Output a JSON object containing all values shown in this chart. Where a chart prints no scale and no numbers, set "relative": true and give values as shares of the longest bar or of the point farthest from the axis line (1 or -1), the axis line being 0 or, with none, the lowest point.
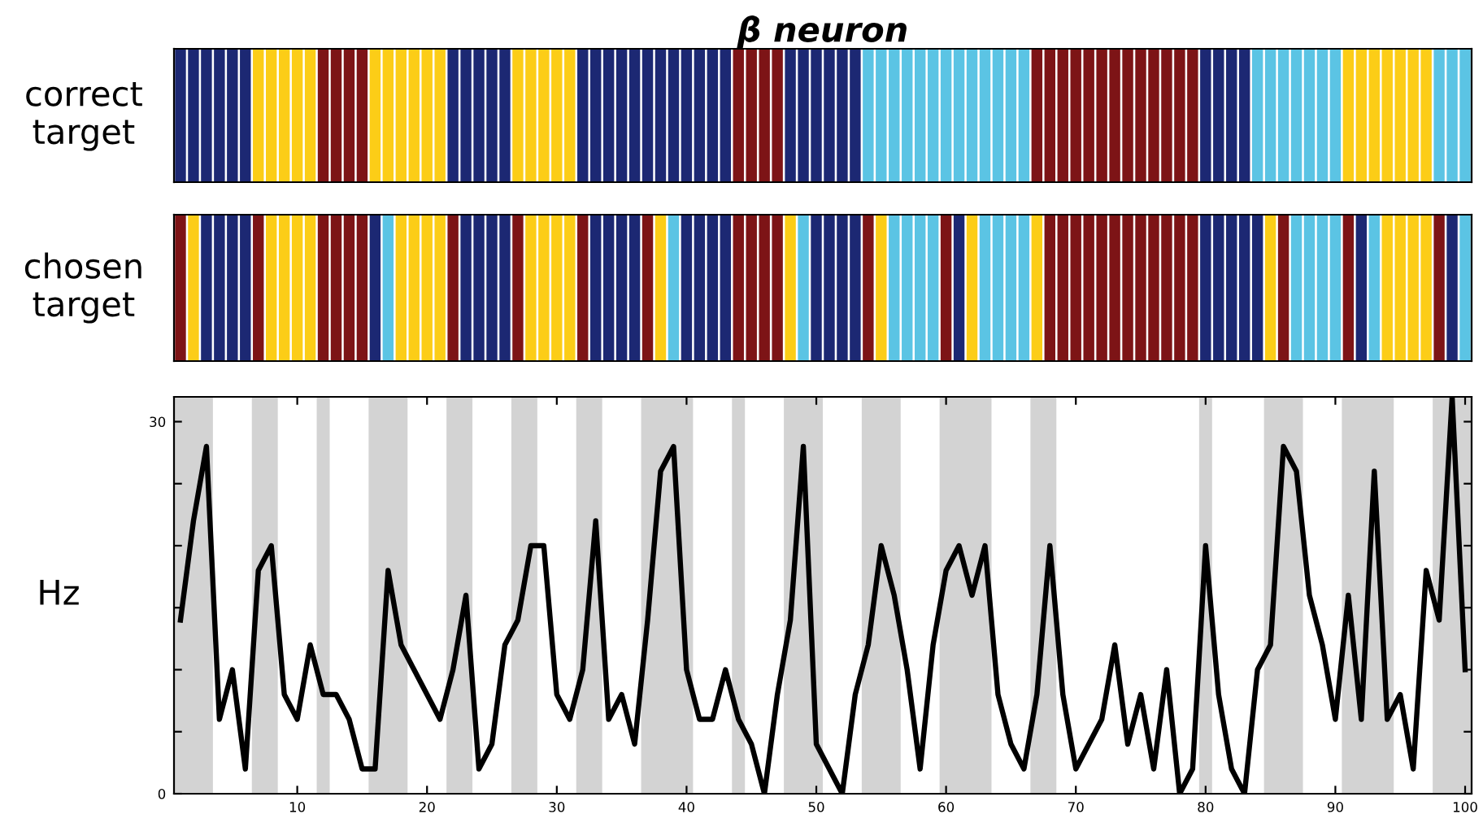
{
  "chart_data": [
    {
      "type": "bar",
      "title": "β neuron",
      "ylabel": "correct target",
      "relative": true,
      "categories": [
        null,
        null,
        null,
        null,
        null,
        null,
        null,
        null,
        null,
        null,
        null,
        null,
        null,
        null,
        null,
        null,
        null,
        null,
        null,
        null,
        null,
        null,
        null,
        null,
        null,
        null,
        null,
        null,
        null,
        null,
        null,
        null,
        null,
        null,
        null,
        null,
        null,
        null,
        null,
        null,
        null,
        null,
        null,
        null,
        null,
        null,
        null,
        null,
        null,
        null,
        null,
        null,
        null,
        null,
        null,
        null,
        null,
        null,
        null,
        null,
        null,
        null,
        null,
        null,
        null,
        null,
        null,
        null,
        null,
        null,
        null,
        null,
        null,
        null,
        null,
        null,
        null,
        null,
        null,
        null,
        null,
        null,
        null,
        null,
        null,
        null,
        null,
        null,
        null,
        null,
        null,
        null,
        null,
        null,
        null,
        null,
        null,
        null,
        null,
        null
      ],
      "values": [
        1,
        1,
        1,
        1,
        1,
        1,
        1,
        1,
        1,
        1,
        1,
        1,
        1,
        1,
        1,
        1,
        1,
        1,
        1,
        1,
        1,
        1,
        1,
        1,
        1,
        1,
        1,
        1,
        1,
        1,
        1,
        1,
        1,
        1,
        1,
        1,
        1,
        1,
        1,
        1,
        1,
        1,
        1,
        1,
        1,
        1,
        1,
        1,
        1,
        1,
        1,
        1,
        1,
        1,
        1,
        1,
        1,
        1,
        1,
        1,
        1,
        1,
        1,
        1,
        1,
        1,
        1,
        1,
        1,
        1,
        1,
        1,
        1,
        1,
        1,
        1,
        1,
        1,
        1,
        1,
        1,
        1,
        1,
        1,
        1,
        1,
        1,
        1,
        1,
        1,
        1,
        1,
        1,
        1,
        1,
        1,
        1,
        1,
        1,
        1
      ],
      "colors": [
        "#1c2873",
        "#1c2873",
        "#1c2873",
        "#1c2873",
        "#1c2873",
        "#1c2873",
        "#fccd17",
        "#fccd17",
        "#fccd17",
        "#fccd17",
        "#fccd17",
        "#7d1416",
        "#7d1416",
        "#7d1416",
        "#7d1416",
        "#fccd17",
        "#fccd17",
        "#fccd17",
        "#fccd17",
        "#fccd17",
        "#fccd17",
        "#1c2873",
        "#1c2873",
        "#1c2873",
        "#1c2873",
        "#1c2873",
        "#fccd17",
        "#fccd17",
        "#fccd17",
        "#fccd17",
        "#fccd17",
        "#1c2873",
        "#1c2873",
        "#1c2873",
        "#1c2873",
        "#1c2873",
        "#1c2873",
        "#1c2873",
        "#1c2873",
        "#1c2873",
        "#1c2873",
        "#1c2873",
        "#1c2873",
        "#7d1416",
        "#7d1416",
        "#7d1416",
        "#7d1416",
        "#1c2873",
        "#1c2873",
        "#1c2873",
        "#1c2873",
        "#1c2873",
        "#1c2873",
        "#5bc4e4",
        "#5bc4e4",
        "#5bc4e4",
        "#5bc4e4",
        "#5bc4e4",
        "#5bc4e4",
        "#5bc4e4",
        "#5bc4e4",
        "#5bc4e4",
        "#5bc4e4",
        "#5bc4e4",
        "#5bc4e4",
        "#5bc4e4",
        "#7d1416",
        "#7d1416",
        "#7d1416",
        "#7d1416",
        "#7d1416",
        "#7d1416",
        "#7d1416",
        "#7d1416",
        "#7d1416",
        "#7d1416",
        "#7d1416",
        "#7d1416",
        "#7d1416",
        "#1c2873",
        "#1c2873",
        "#1c2873",
        "#1c2873",
        "#5bc4e4",
        "#5bc4e4",
        "#5bc4e4",
        "#5bc4e4",
        "#5bc4e4",
        "#5bc4e4",
        "#5bc4e4",
        "#fccd17",
        "#fccd17",
        "#fccd17",
        "#fccd17",
        "#fccd17",
        "#fccd17",
        "#fccd17",
        "#5bc4e4",
        "#5bc4e4",
        "#5bc4e4"
      ]
    },
    {
      "type": "bar",
      "ylabel": "chosen target",
      "relative": true,
      "categories": [
        null,
        null,
        null,
        null,
        null,
        null,
        null,
        null,
        null,
        null,
        null,
        null,
        null,
        null,
        null,
        null,
        null,
        null,
        null,
        null,
        null,
        null,
        null,
        null,
        null,
        null,
        null,
        null,
        null,
        null,
        null,
        null,
        null,
        null,
        null,
        null,
        null,
        null,
        null,
        null,
        null,
        null,
        null,
        null,
        null,
        null,
        null,
        null,
        null,
        null,
        null,
        null,
        null,
        null,
        null,
        null,
        null,
        null,
        null,
        null,
        null,
        null,
        null,
        null,
        null,
        null,
        null,
        null,
        null,
        null,
        null,
        null,
        null,
        null,
        null,
        null,
        null,
        null,
        null,
        null,
        null,
        null,
        null,
        null,
        null,
        null,
        null,
        null,
        null,
        null,
        null,
        null,
        null,
        null,
        null,
        null,
        null,
        null,
        null,
        null
      ],
      "values": [
        1,
        1,
        1,
        1,
        1,
        1,
        1,
        1,
        1,
        1,
        1,
        1,
        1,
        1,
        1,
        1,
        1,
        1,
        1,
        1,
        1,
        1,
        1,
        1,
        1,
        1,
        1,
        1,
        1,
        1,
        1,
        1,
        1,
        1,
        1,
        1,
        1,
        1,
        1,
        1,
        1,
        1,
        1,
        1,
        1,
        1,
        1,
        1,
        1,
        1,
        1,
        1,
        1,
        1,
        1,
        1,
        1,
        1,
        1,
        1,
        1,
        1,
        1,
        1,
        1,
        1,
        1,
        1,
        1,
        1,
        1,
        1,
        1,
        1,
        1,
        1,
        1,
        1,
        1,
        1,
        1,
        1,
        1,
        1,
        1,
        1,
        1,
        1,
        1,
        1,
        1,
        1,
        1,
        1,
        1,
        1,
        1,
        1,
        1,
        1
      ],
      "colors": [
        "#7d1416",
        "#fccd17",
        "#1c2873",
        "#1c2873",
        "#1c2873",
        "#1c2873",
        "#7d1416",
        "#fccd17",
        "#fccd17",
        "#fccd17",
        "#fccd17",
        "#7d1416",
        "#7d1416",
        "#7d1416",
        "#7d1416",
        "#1c2873",
        "#5bc4e4",
        "#fccd17",
        "#fccd17",
        "#fccd17",
        "#fccd17",
        "#7d1416",
        "#1c2873",
        "#1c2873",
        "#1c2873",
        "#1c2873",
        "#7d1416",
        "#fccd17",
        "#fccd17",
        "#fccd17",
        "#fccd17",
        "#7d1416",
        "#1c2873",
        "#1c2873",
        "#1c2873",
        "#1c2873",
        "#7d1416",
        "#fccd17",
        "#5bc4e4",
        "#1c2873",
        "#1c2873",
        "#1c2873",
        "#1c2873",
        "#7d1416",
        "#7d1416",
        "#7d1416",
        "#7d1416",
        "#fccd17",
        "#5bc4e4",
        "#1c2873",
        "#1c2873",
        "#1c2873",
        "#1c2873",
        "#7d1416",
        "#fccd17",
        "#5bc4e4",
        "#5bc4e4",
        "#5bc4e4",
        "#5bc4e4",
        "#7d1416",
        "#1c2873",
        "#fccd17",
        "#5bc4e4",
        "#5bc4e4",
        "#5bc4e4",
        "#5bc4e4",
        "#fccd17",
        "#7d1416",
        "#7d1416",
        "#7d1416",
        "#7d1416",
        "#7d1416",
        "#7d1416",
        "#7d1416",
        "#7d1416",
        "#7d1416",
        "#7d1416",
        "#7d1416",
        "#7d1416",
        "#1c2873",
        "#1c2873",
        "#1c2873",
        "#1c2873",
        "#1c2873",
        "#fccd17",
        "#7d1416",
        "#5bc4e4",
        "#5bc4e4",
        "#5bc4e4",
        "#5bc4e4",
        "#7d1416",
        "#1c2873",
        "#5bc4e4",
        "#fccd17",
        "#fccd17",
        "#fccd17",
        "#fccd17",
        "#7d1416",
        "#1c2873",
        "#5bc4e4"
      ]
    },
    {
      "type": "line",
      "ylabel": "Hz",
      "x": [
        1,
        2,
        3,
        4,
        5,
        6,
        7,
        8,
        9,
        10,
        11,
        12,
        13,
        14,
        15,
        16,
        17,
        18,
        19,
        20,
        21,
        22,
        23,
        24,
        25,
        26,
        27,
        28,
        29,
        30,
        31,
        32,
        33,
        34,
        35,
        36,
        37,
        38,
        39,
        40,
        41,
        42,
        43,
        44,
        45,
        46,
        47,
        48,
        49,
        50,
        51,
        52,
        53,
        54,
        55,
        56,
        57,
        58,
        59,
        60,
        61,
        62,
        63,
        64,
        65,
        66,
        67,
        68,
        69,
        70,
        71,
        72,
        73,
        74,
        75,
        76,
        77,
        78,
        79,
        80,
        81,
        82,
        83,
        84,
        85,
        86,
        87,
        88,
        89,
        90,
        91,
        92,
        93,
        94,
        95,
        96,
        97,
        98,
        99,
        100
      ],
      "series": [
        {
          "color": "#000000",
          "values": [
            14,
            22,
            28,
            6,
            10,
            2,
            18,
            20,
            8,
            6,
            12,
            8,
            8,
            6,
            2,
            2,
            18,
            12,
            10,
            8,
            6,
            10,
            16,
            2,
            4,
            12,
            14,
            20,
            20,
            8,
            6,
            10,
            22,
            6,
            8,
            4,
            14,
            26,
            28,
            10,
            6,
            6,
            10,
            6,
            4,
            0,
            8,
            14,
            28,
            4,
            2,
            0,
            8,
            12,
            20,
            16,
            10,
            2,
            12,
            18,
            20,
            16,
            20,
            8,
            4,
            2,
            8,
            20,
            8,
            2,
            4,
            6,
            12,
            4,
            8,
            2,
            10,
            0,
            2,
            20,
            8,
            2,
            0,
            10,
            12,
            28,
            26,
            16,
            12,
            6,
            16,
            6,
            26,
            6,
            8,
            2,
            18,
            14,
            32,
            10
          ]
        }
      ],
      "xlim": [
        0.5,
        100.5
      ],
      "ylim": [
        0,
        32
      ],
      "xticks": [
        10,
        20,
        30,
        40,
        50,
        60,
        70,
        80,
        90,
        100
      ],
      "yticks": [
        0,
        {
          "value": 5,
          "label": null
        },
        {
          "value": 10,
          "label": null
        },
        {
          "value": 15,
          "label": null
        },
        {
          "value": 20,
          "label": null
        },
        {
          "value": 25,
          "label": null
        },
        30
      ],
      "bands": [
        {
          "axis": "x",
          "from": 0.5,
          "to": 3.5,
          "color": "#d3d3d3"
        },
        {
          "axis": "x",
          "from": 6.5,
          "to": 8.5,
          "color": "#d3d3d3"
        },
        {
          "axis": "x",
          "from": 11.5,
          "to": 12.5,
          "color": "#d3d3d3"
        },
        {
          "axis": "x",
          "from": 15.5,
          "to": 18.5,
          "color": "#d3d3d3"
        },
        {
          "axis": "x",
          "from": 21.5,
          "to": 23.5,
          "color": "#d3d3d3"
        },
        {
          "axis": "x",
          "from": 26.5,
          "to": 28.5,
          "color": "#d3d3d3"
        },
        {
          "axis": "x",
          "from": 31.5,
          "to": 33.5,
          "color": "#d3d3d3"
        },
        {
          "axis": "x",
          "from": 36.5,
          "to": 40.5,
          "color": "#d3d3d3"
        },
        {
          "axis": "x",
          "from": 43.5,
          "to": 44.5,
          "color": "#d3d3d3"
        },
        {
          "axis": "x",
          "from": 47.5,
          "to": 50.5,
          "color": "#d3d3d3"
        },
        {
          "axis": "x",
          "from": 53.5,
          "to": 56.5,
          "color": "#d3d3d3"
        },
        {
          "axis": "x",
          "from": 59.5,
          "to": 63.5,
          "color": "#d3d3d3"
        },
        {
          "axis": "x",
          "from": 66.5,
          "to": 68.5,
          "color": "#d3d3d3"
        },
        {
          "axis": "x",
          "from": 79.5,
          "to": 80.5,
          "color": "#d3d3d3"
        },
        {
          "axis": "x",
          "from": 84.5,
          "to": 87.5,
          "color": "#d3d3d3"
        },
        {
          "axis": "x",
          "from": 90.5,
          "to": 94.5,
          "color": "#d3d3d3"
        },
        {
          "axis": "x",
          "from": 97.5,
          "to": 100.5,
          "color": "#d3d3d3"
        }
      ]
    }
  ]
}
